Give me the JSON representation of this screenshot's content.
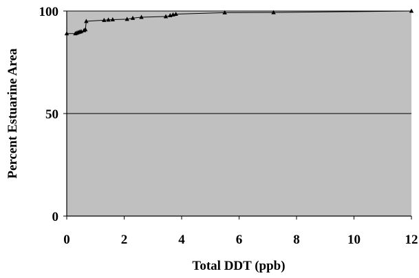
{
  "chart_data": {
    "type": "line",
    "title": "",
    "xlabel": "Total DDT (ppb)",
    "ylabel": "Percent Estuarine Area",
    "xlim": [
      0,
      12
    ],
    "ylim": [
      0,
      100
    ],
    "xticks": [
      "0",
      "2",
      "4",
      "6",
      "8",
      "10",
      "12"
    ],
    "yticks": [
      "0",
      "50",
      "100"
    ],
    "grid": "horizontal at 50",
    "plot_background": "#c0c0c0",
    "line_color": "#000000",
    "marker": "triangle",
    "series": [
      {
        "x": [
          0.0,
          0.3,
          0.35,
          0.4,
          0.45,
          0.5,
          0.6,
          0.65,
          0.68,
          1.3,
          1.45,
          1.6,
          2.1,
          2.3,
          2.6,
          3.45,
          3.6,
          3.7,
          3.8,
          5.5,
          7.2,
          12.0
        ],
        "y": [
          89,
          89,
          89.3,
          89.6,
          89.8,
          90,
          90.5,
          91,
          95,
          95.5,
          95.7,
          95.8,
          96,
          96.5,
          97,
          97.3,
          97.8,
          98.2,
          98.5,
          99.2,
          99.3,
          100
        ]
      }
    ]
  }
}
